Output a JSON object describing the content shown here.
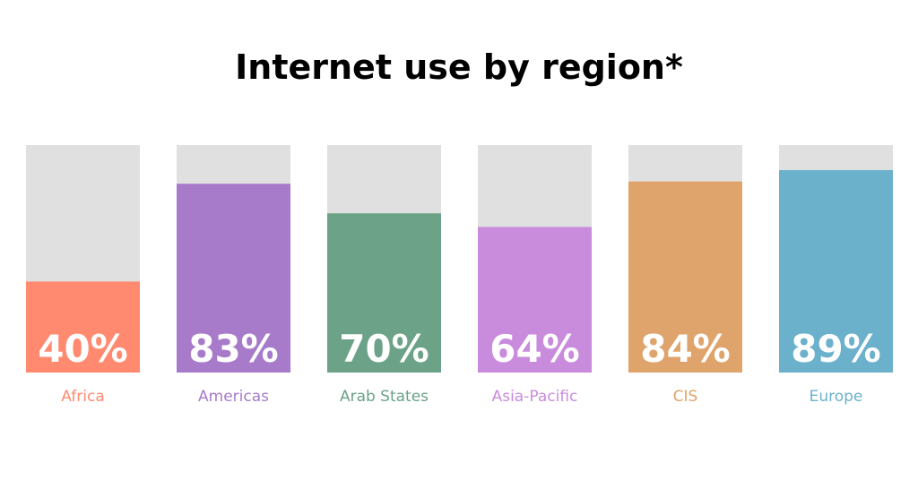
{
  "chart_data": {
    "type": "bar",
    "title": "Internet use by region*",
    "categories": [
      "Africa",
      "Americas",
      "Arab States",
      "Asia-Pacific",
      "CIS",
      "Europe"
    ],
    "values": [
      40,
      83,
      70,
      64,
      84,
      89
    ],
    "value_labels": [
      "40%",
      "83%",
      "70%",
      "64%",
      "84%",
      "89%"
    ],
    "colors": [
      "#ff8a70",
      "#a77bca",
      "#6ba288",
      "#c98bdc",
      "#dfa46b",
      "#6bb1cc"
    ],
    "ylim": [
      0,
      100
    ]
  }
}
